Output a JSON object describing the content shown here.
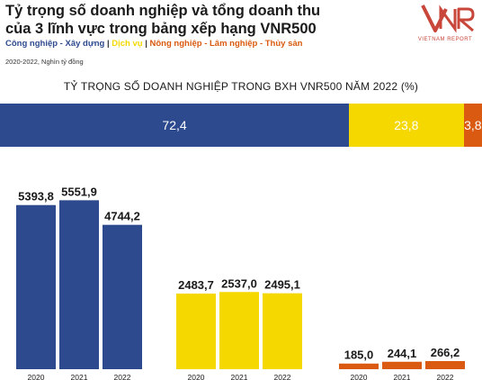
{
  "header": {
    "title_line1": "Tỷ trọng số doanh nghiệp và tổng doanh thu",
    "title_line2": "của 3 lĩnh vực trong bảng xếp hạng VNR500",
    "note": "2020-2022, Nghìn tỷ đồng"
  },
  "legend": [
    {
      "label": "Công nghiệp - Xây dựng",
      "color": "#2e4a8f"
    },
    {
      "label": "Dịch vụ",
      "color": "#f5d800"
    },
    {
      "label": "Nông nghiệp - Lâm nghiệp - Thủy sản",
      "color": "#d95a10"
    }
  ],
  "legend_separator": " | ",
  "logo": {
    "mark": "VNR",
    "subtitle": "VIETNAM REPORT"
  },
  "chart_data": [
    {
      "type": "bar",
      "stacked": true,
      "orientation": "horizontal",
      "title": "TỶ TRỌNG SỐ DOANH NGHIỆP TRONG BXH VNR500 NĂM 2022 (%)",
      "series": [
        {
          "name": "Công nghiệp - Xây dựng",
          "value": 72.4,
          "label": "72,4",
          "color": "#2e4a8f"
        },
        {
          "name": "Dịch vụ",
          "value": 23.8,
          "label": "23,8",
          "color": "#f5d800"
        },
        {
          "name": "Nông nghiệp - Lâm nghiệp - Thủy sản",
          "value": 3.8,
          "label": "3,8",
          "color": "#d95a10"
        }
      ]
    },
    {
      "type": "bar",
      "grouped": true,
      "categories": [
        "2020",
        "2021",
        "2022"
      ],
      "series": [
        {
          "name": "Công nghiệp - Xây dựng",
          "color": "#2e4a8f",
          "values": [
            5393.8,
            5551.9,
            4744.2
          ],
          "labels": [
            "5393,8",
            "5551,9",
            "4744,2"
          ]
        },
        {
          "name": "Dịch vụ",
          "color": "#f5d800",
          "values": [
            2483.7,
            2537.0,
            2495.1
          ],
          "labels": [
            "2483,7",
            "2537,0",
            "2495,1"
          ]
        },
        {
          "name": "Nông nghiệp - Lâm nghiệp - Thủy sản",
          "color": "#d95a10",
          "values": [
            185.0,
            244.1,
            266.2
          ],
          "labels": [
            "185,0",
            "244,1",
            "266,2"
          ]
        }
      ],
      "ylim": [
        0,
        5800
      ]
    }
  ]
}
